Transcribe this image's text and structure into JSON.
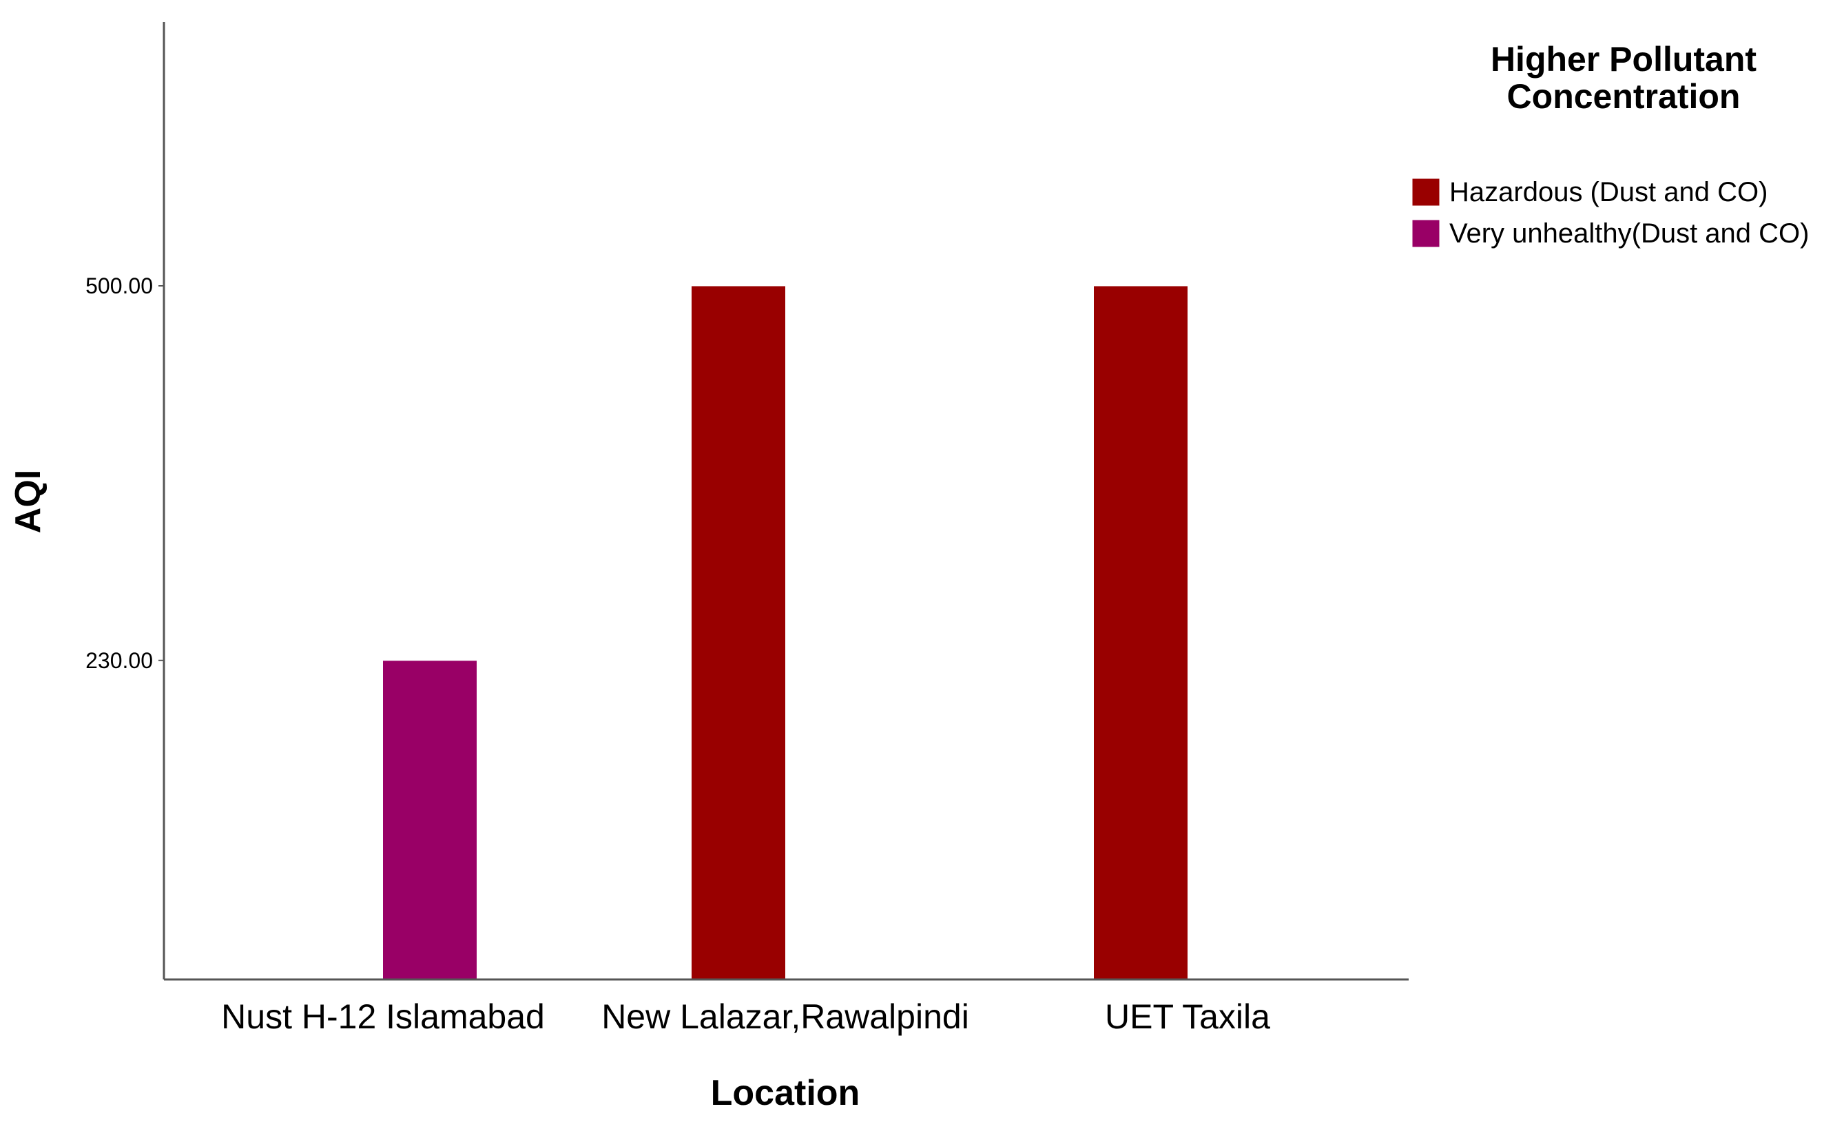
{
  "chart_data": {
    "type": "bar",
    "title": "",
    "xlabel": "Location",
    "ylabel": "AQI",
    "categories": [
      "Nust H-12 Islamabad",
      "New Lalazar,Rawalpindi",
      "UET Taxila"
    ],
    "ylim": [
      0,
      500
    ],
    "yticks": [
      230,
      500
    ],
    "ytick_labels": [
      "230.00",
      "500.00"
    ],
    "grid": false,
    "legend": {
      "title": "Higher Pollutant Concentration",
      "title_lines": [
        "Higher Pollutant",
        "Concentration"
      ],
      "placement": "top-right"
    },
    "series": [
      {
        "name": "Hazardous (Dust and CO)",
        "color": "#990000",
        "values": [
          null,
          500,
          500
        ]
      },
      {
        "name": "Very unhealthy(Dust and CO)",
        "color": "#990066",
        "values": [
          230,
          null,
          null
        ]
      }
    ]
  }
}
